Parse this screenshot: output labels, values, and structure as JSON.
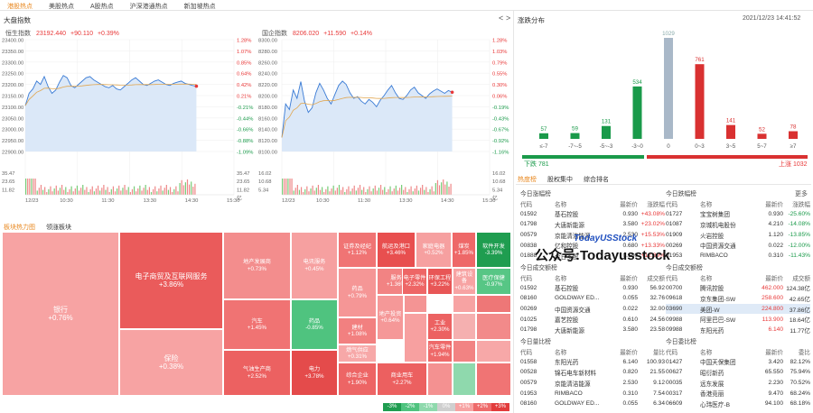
{
  "topnav": [
    "港股热点",
    "美股热点",
    "A股热点",
    "沪深港通热点",
    "新加坡热点"
  ],
  "left": {
    "title": "大盘指数",
    "nav_prev": "<",
    "nav_next": ">",
    "hsi": {
      "name": "恒生指数",
      "value": "23192.440",
      "change": "+90.110",
      "pct": "+0.39%",
      "yticks": [
        "23400.00",
        "23350.00",
        "23300.00",
        "23250.00",
        "23200.00",
        "23150.00",
        "23100.00",
        "23050.00",
        "23000.00",
        "22950.00",
        "22900.00"
      ],
      "rticks": [
        "1.28%",
        "1.07%",
        "0.85%",
        "0.64%",
        "0.42%",
        "0.21%",
        "-0.21%",
        "-0.44%",
        "-0.66%",
        "-0.88%",
        "-1.09%"
      ],
      "vol": [
        "35.47",
        "23.65",
        "11.82"
      ],
      "vol_r": [
        "35.47",
        "23.65",
        "11.82",
        "亿"
      ]
    },
    "hscei": {
      "name": "国企指数",
      "value": "8206.020",
      "change": "+11.590",
      "pct": "+0.14%",
      "yticks": [
        "8300.00",
        "8280.00",
        "8260.00",
        "8240.00",
        "8220.00",
        "8200.00",
        "8180.00",
        "8160.00",
        "8140.00",
        "8120.00",
        "8100.00"
      ],
      "rticks": [
        "1.28%",
        "1.03%",
        "0.79%",
        "0.55%",
        "0.30%",
        "0.06%",
        "-0.19%",
        "-0.43%",
        "-0.67%",
        "-0.92%",
        "-1.16%"
      ],
      "vol": [
        "16.02",
        "10.68",
        "5.34"
      ],
      "vol_r": [
        "16.02",
        "10.68",
        "5.34",
        "亿"
      ]
    },
    "xticks": [
      "12/23",
      "10:30",
      "11:30",
      "13:30",
      "14:30",
      "15:30"
    ]
  },
  "heatmap": {
    "tabs": [
      "板块热力图",
      "领涨板块"
    ],
    "cells": [
      {
        "name": "银行",
        "pct": "+0.76%",
        "color": "#f7a3a3"
      },
      {
        "name": "电子商贸及互联网服务",
        "pct": "+3.86%",
        "color": "#ea5b5b"
      },
      {
        "name": "保险",
        "pct": "+0.38%",
        "color": "#f7a3a3"
      },
      {
        "name": "地产发展商",
        "pct": "+0.73%",
        "color": "#f38d8d"
      },
      {
        "name": "汽车",
        "pct": "+1.45%",
        "color": "#f07373"
      },
      {
        "name": "气油生产商",
        "pct": "+2.52%",
        "color": "#ec6161"
      },
      {
        "name": "电讯服务",
        "pct": "+0.45%",
        "color": "#f6a0a0"
      },
      {
        "name": "药品",
        "pct": "-0.85%",
        "color": "#4fc37f"
      },
      {
        "name": "电力",
        "pct": "+3.78%",
        "color": "#e44b4b"
      },
      {
        "name": "证券及经纪",
        "pct": "+1.12%",
        "color": "#f07474"
      },
      {
        "name": "航运及港口",
        "pct": "+3.46%",
        "color": "#e84f4f"
      },
      {
        "name": "家庭电器",
        "pct": "+0.52%",
        "color": "#f6a0a0"
      },
      {
        "name": "煤炭",
        "pct": "+1.85%",
        "color": "#ee6868"
      },
      {
        "name": "软件开发",
        "pct": "-3.39%",
        "color": "#1f9d50"
      },
      {
        "name": "服务",
        "pct": "+1.36%",
        "color": "#f28383"
      },
      {
        "name": "电子零件",
        "pct": "+2.32%",
        "color": "#ee6666"
      },
      {
        "name": "环保工程",
        "pct": "+3.22%",
        "color": "#e85656"
      },
      {
        "name": "建筑设备",
        "pct": "+0.63%",
        "color": "#f7a3a3"
      },
      {
        "name": "医疗保健",
        "pct": "-0.97%",
        "color": "#57c685"
      },
      {
        "name": "药品",
        "pct": "+0.79%",
        "color": "#f59696"
      },
      {
        "name": "建材",
        "pct": "+1.08%",
        "color": "#f28080"
      },
      {
        "name": "燃气供应",
        "pct": "+0.31%",
        "color": "#f7a8a8"
      },
      {
        "name": "地产投资",
        "pct": "+0.64%",
        "color": "#f59898"
      },
      {
        "name": "综合企业",
        "pct": "+1.90%",
        "color": "#ed6565"
      },
      {
        "name": "工业",
        "pct": "+2.30%",
        "color": "#ec6262"
      },
      {
        "name": "汽车零件",
        "pct": "+1.94%",
        "color": "#ee6969"
      },
      {
        "name": "商业用车",
        "pct": "+2.27%",
        "color": "#ec6060"
      }
    ],
    "legend": [
      "-3%",
      "-2%",
      "-1%",
      "0%",
      "+1%",
      "+2%",
      "+3%"
    ],
    "legend_colors": [
      "#1f9d50",
      "#4fc37f",
      "#8fd9ad",
      "#cfcfcf",
      "#f7a3a3",
      "#ee6b6b",
      "#e23c3c"
    ]
  },
  "dist": {
    "title": "涨跌分布",
    "datetime": "2021/12/23  14:41:52",
    "bars": [
      {
        "label": "≤-7",
        "value": 57,
        "color": "#1a9a4a"
      },
      {
        "label": "-7~-5",
        "value": 59,
        "color": "#1a9a4a"
      },
      {
        "label": "-5~-3",
        "value": 131,
        "color": "#1a9a4a"
      },
      {
        "label": "-3~0",
        "value": 534,
        "color": "#1a9a4a"
      },
      {
        "label": "0",
        "value": 1029,
        "color": "#a9b8c8"
      },
      {
        "label": "0~3",
        "value": 761,
        "color": "#d93131"
      },
      {
        "label": "3~5",
        "value": 141,
        "color": "#d93131"
      },
      {
        "label": "5~7",
        "value": 52,
        "color": "#d93131"
      },
      {
        "label": "≥7",
        "value": 78,
        "color": "#d93131"
      }
    ],
    "down_label": "下跌 781",
    "up_label": "上涨 1032",
    "down_share": 0.43,
    "up_share": 0.57
  },
  "rank": {
    "tabs": [
      "热度榜",
      "股权集中",
      "综合排名"
    ],
    "watermark": "公众号:Todayusstock",
    "watermark_logo": "TodayUSStock",
    "more": "更多",
    "gain": {
      "title": "今日涨幅榜",
      "cols": [
        "代码",
        "名称",
        "最新价",
        "涨跌幅"
      ],
      "rows": [
        [
          "01592",
          "基石控股",
          "0.930",
          "+43.08%"
        ],
        [
          "01798",
          "大唐新能源",
          "3.580",
          "+23.02%"
        ],
        [
          "00579",
          "京能清洁能源",
          "2.530",
          "+15.53%"
        ],
        [
          "00838",
          "亿和控股",
          "0.680",
          "+13.33%"
        ],
        [
          "01888",
          "今日多股",
          "0.180",
          "+12.39%"
        ]
      ]
    },
    "loss": {
      "title": "今日跌幅榜",
      "cols": [
        "代码",
        "名称",
        "最新价",
        "涨跌幅"
      ],
      "rows": [
        [
          "01727",
          "宝宝树集团",
          "0.930",
          "-25.60%"
        ],
        [
          "01087",
          "京城机电股份",
          "4.210",
          "-14.08%"
        ],
        [
          "01909",
          "火岩控股",
          "1.120",
          "-13.85%"
        ],
        [
          "00269",
          "中国资源交通",
          "0.022",
          "-12.00%"
        ],
        [
          "01953",
          "RIMBACO",
          "0.310",
          "-11.43%"
        ]
      ]
    },
    "amount": {
      "title": "今日成交额榜",
      "cols": [
        "代码",
        "名称",
        "最新价",
        "成交额"
      ],
      "rows": [
        [
          "01592",
          "基石控股",
          "0.930",
          "56.92"
        ],
        [
          "08160",
          "GOLDWAY ED...",
          "0.055",
          "32.76"
        ],
        [
          "00269",
          "中国资源交通",
          "0.022",
          "32.00"
        ],
        [
          "01025",
          "嘉艺控股",
          "0.610",
          "24.56"
        ],
        [
          "01798",
          "大唐新能源",
          "3.580",
          "23.58"
        ]
      ]
    },
    "turnover": {
      "title": "今日成交额榜",
      "cols": [
        "代码",
        "名称",
        "最新价",
        "成交额"
      ],
      "rows": [
        [
          "00700",
          "腾讯控股",
          "462.000",
          "124.38亿"
        ],
        [
          "09618",
          "京东集团-SW",
          "258.600",
          "42.65亿"
        ],
        [
          "03690",
          "美团-W",
          "224.800",
          "37.86亿"
        ],
        [
          "09988",
          "阿里巴巴-SW",
          "113.900",
          "18.64亿"
        ],
        [
          "09988",
          "东阳光药",
          "6.140",
          "11.77亿"
        ]
      ],
      "highlight": 2
    },
    "volume": {
      "title": "今日量比榜",
      "cols": [
        "代码",
        "名称",
        "最新价",
        "量比"
      ],
      "rows": [
        [
          "01558",
          "东阳光药",
          "6.140",
          "100.93"
        ],
        [
          "00528",
          "锦石电车新材料",
          "0.820",
          "21.55"
        ],
        [
          "00579",
          "京能清洁能源",
          "2.530",
          "9.12"
        ],
        [
          "01953",
          "RIMBACO",
          "0.310",
          "7.54"
        ],
        [
          "08160",
          "GOLDWAY ED...",
          "0.055",
          "6.34"
        ]
      ]
    },
    "ratio": {
      "title": "今日委比榜",
      "cols": [
        "代码",
        "名称",
        "最新价",
        "委比"
      ],
      "rows": [
        [
          "01427",
          "中国天保集团",
          "3.420",
          "82.12%"
        ],
        [
          "00627",
          "昭衍新药",
          "65.550",
          "75.94%"
        ],
        [
          "00035",
          "远东发展",
          "2.230",
          "70.52%"
        ],
        [
          "00317",
          "香港竞丽",
          "9.470",
          "68.24%"
        ],
        [
          "06609",
          "心玮医疗-B",
          "94.100",
          "68.18%"
        ]
      ]
    }
  }
}
